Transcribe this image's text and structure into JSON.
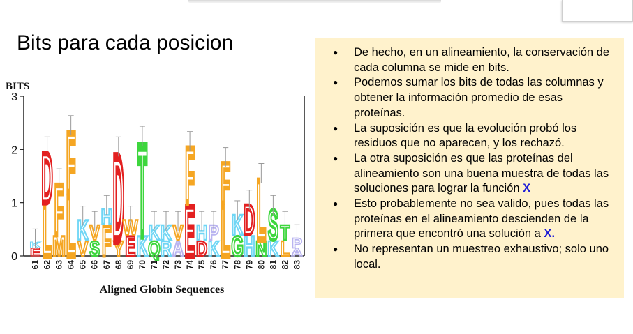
{
  "slide": {
    "title": "Bits para cada posicion"
  },
  "logo": {
    "ylabel": "BITS",
    "xlabel": "Aligned Globin Sequences",
    "yticks": [
      "0",
      "1",
      "2",
      "3"
    ],
    "positions": [
      "61",
      "62",
      "63",
      "64",
      "65",
      "66",
      "67",
      "68",
      "69",
      "70",
      "71",
      "72",
      "73",
      "74",
      "75",
      "76",
      "77",
      "78",
      "79",
      "80",
      "81",
      "82",
      "83"
    ],
    "chart_data": {
      "type": "sequence-logo",
      "ylabel": "BITS",
      "xlabel": "Aligned Globin Sequences",
      "ylim": [
        0,
        3
      ],
      "x": [
        61,
        62,
        63,
        64,
        65,
        66,
        67,
        68,
        69,
        70,
        71,
        72,
        73,
        74,
        75,
        76,
        77,
        78,
        79,
        80,
        81,
        82,
        83
      ],
      "columns": [
        {
          "pos": 61,
          "letters": [
            {
              "l": "E",
              "h": 0.15
            },
            {
              "l": "K",
              "h": 0.12
            }
          ]
        },
        {
          "pos": 62,
          "letters": [
            {
              "l": "L",
              "h": 1.0
            },
            {
              "l": "D",
              "h": 1.0
            }
          ]
        },
        {
          "pos": 63,
          "letters": [
            {
              "l": "M",
              "h": 0.4
            },
            {
              "l": "F",
              "h": 1.0
            }
          ]
        },
        {
          "pos": 64,
          "letters": [
            {
              "l": "L",
              "h": 1.2
            },
            {
              "l": "F",
              "h": 1.2
            }
          ]
        },
        {
          "pos": 65,
          "letters": [
            {
              "l": "V",
              "h": 0.3
            },
            {
              "l": "K",
              "h": 0.4
            }
          ]
        },
        {
          "pos": 66,
          "letters": [
            {
              "l": "S",
              "h": 0.3
            },
            {
              "l": "V",
              "h": 0.3
            }
          ]
        },
        {
          "pos": 67,
          "letters": [
            {
              "l": "F",
              "h": 0.6
            },
            {
              "l": "H",
              "h": 0.3
            }
          ]
        },
        {
          "pos": 68,
          "letters": [
            {
              "l": "Y",
              "h": 0.3
            },
            {
              "l": "D",
              "h": 1.7
            }
          ]
        },
        {
          "pos": 69,
          "letters": [
            {
              "l": "E",
              "h": 0.4
            },
            {
              "l": "W",
              "h": 0.3
            }
          ]
        },
        {
          "pos": 70,
          "letters": [
            {
              "l": "K",
              "h": 0.4
            },
            {
              "l": "T",
              "h": 1.8
            }
          ]
        },
        {
          "pos": 71,
          "letters": [
            {
              "l": "Q",
              "h": 0.3
            },
            {
              "l": "K",
              "h": 0.3
            }
          ]
        },
        {
          "pos": 72,
          "letters": [
            {
              "l": "R",
              "h": 0.3
            },
            {
              "l": "K",
              "h": 0.3
            }
          ]
        },
        {
          "pos": 73,
          "letters": [
            {
              "l": "A",
              "h": 0.3
            },
            {
              "l": "V",
              "h": 0.3
            }
          ]
        },
        {
          "pos": 74,
          "letters": [
            {
              "l": "E",
              "h": 1.0
            },
            {
              "l": "F",
              "h": 1.1
            }
          ]
        },
        {
          "pos": 75,
          "letters": [
            {
              "l": "D",
              "h": 0.3
            },
            {
              "l": "H",
              "h": 0.3
            }
          ]
        },
        {
          "pos": 76,
          "letters": [
            {
              "l": "K",
              "h": 0.3
            },
            {
              "l": "P",
              "h": 0.3
            }
          ]
        },
        {
          "pos": 77,
          "letters": [
            {
              "l": "L",
              "h": 1.0
            },
            {
              "l": "F",
              "h": 0.8
            }
          ]
        },
        {
          "pos": 78,
          "letters": [
            {
              "l": "G",
              "h": 0.4
            },
            {
              "l": "K",
              "h": 0.4
            }
          ]
        },
        {
          "pos": 79,
          "letters": [
            {
              "l": "H",
              "h": 0.4
            },
            {
              "l": "D",
              "h": 0.6
            }
          ]
        },
        {
          "pos": 80,
          "letters": [
            {
              "l": "N",
              "h": 0.3
            },
            {
              "l": "L",
              "h": 1.2
            }
          ]
        },
        {
          "pos": 81,
          "letters": [
            {
              "l": "K",
              "h": 0.3
            },
            {
              "l": "S",
              "h": 0.6
            }
          ]
        },
        {
          "pos": 82,
          "letters": [
            {
              "l": "L",
              "h": 0.3
            },
            {
              "l": "T",
              "h": 0.3
            }
          ]
        },
        {
          "pos": 83,
          "letters": [
            {
              "l": "A",
              "h": 0.15
            },
            {
              "l": "P",
              "h": 0.2
            }
          ]
        }
      ]
    }
  },
  "bullets": [
    {
      "text": "De hecho, en un alineamiento, la conservación de cada columna se mide en bits."
    },
    {
      "text": "Podemos sumar los bits de todas las columnas y obtener la información promedio de esas proteínas."
    },
    {
      "text": "La suposición es que la evolución probó los residuos que no aparecen, y los rechazó."
    },
    {
      "text": "La otra suposición es que las proteínas del alineamiento son una buena muestra de todas las soluciones para lograr la función ",
      "highlight": "X",
      "tail": ""
    },
    {
      "text": "Esto probablemente no sea valido, pues todas las proteínas en el alineamiento descienden de la primera que encontró una solución a ",
      "highlight": "X",
      "tail": "."
    },
    {
      "text": "No representan un muestreo exhaustivo; solo uno local."
    }
  ],
  "colors": {
    "panel": "#fff2cc",
    "highlight": "#1a1ad6",
    "orange": "#f5a623",
    "lavender": "#b9b4f0",
    "red": "#e32020",
    "green": "#3dd63d",
    "cyan": "#6fd6f5",
    "blue": "#2b2bd6"
  }
}
